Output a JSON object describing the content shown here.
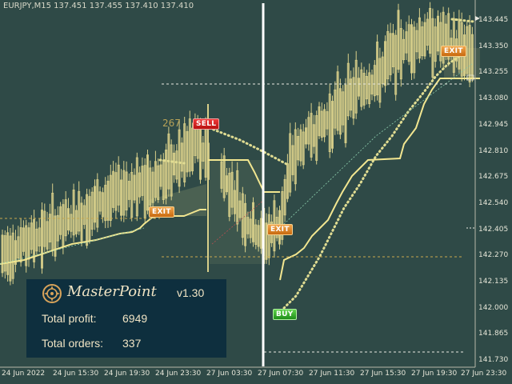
{
  "chart": {
    "title": "EURJPY,M15  137.451 137.455 137.410 137.410",
    "price_labels": [
      "143.445",
      "143.350",
      "143.255",
      "143.080",
      "142.945",
      "142.810",
      "142.675",
      "142.540",
      "142.405",
      "142.270",
      "142.135",
      "142.000",
      "141.865",
      "141.730"
    ],
    "time_labels": [
      "24 Jun 2022",
      "24 Jun 15:30",
      "24 Jun 19:30",
      "24 Jun 23:30",
      "27 Jun 03:30",
      "27 Jun 07:30",
      "27 Jun 11:30",
      "27 Jun 15:30",
      "27 Jun 19:30",
      "27 Jun 23:30"
    ],
    "signals": {
      "sell": "SELL",
      "buy": "BUY",
      "exit": "EXIT"
    },
    "trade_points": "267",
    "colors": {
      "background": "#2f4a47",
      "candles": "#d8cf8a",
      "band": "#f2e690",
      "dots": "#e0dc92",
      "vline": "#ffffff"
    }
  },
  "panel": {
    "brand": "MasterPoint",
    "version": "v1.30",
    "profit_label": "Total profit:",
    "profit_value": "6949",
    "orders_label": "Total orders:",
    "orders_value": "337"
  }
}
